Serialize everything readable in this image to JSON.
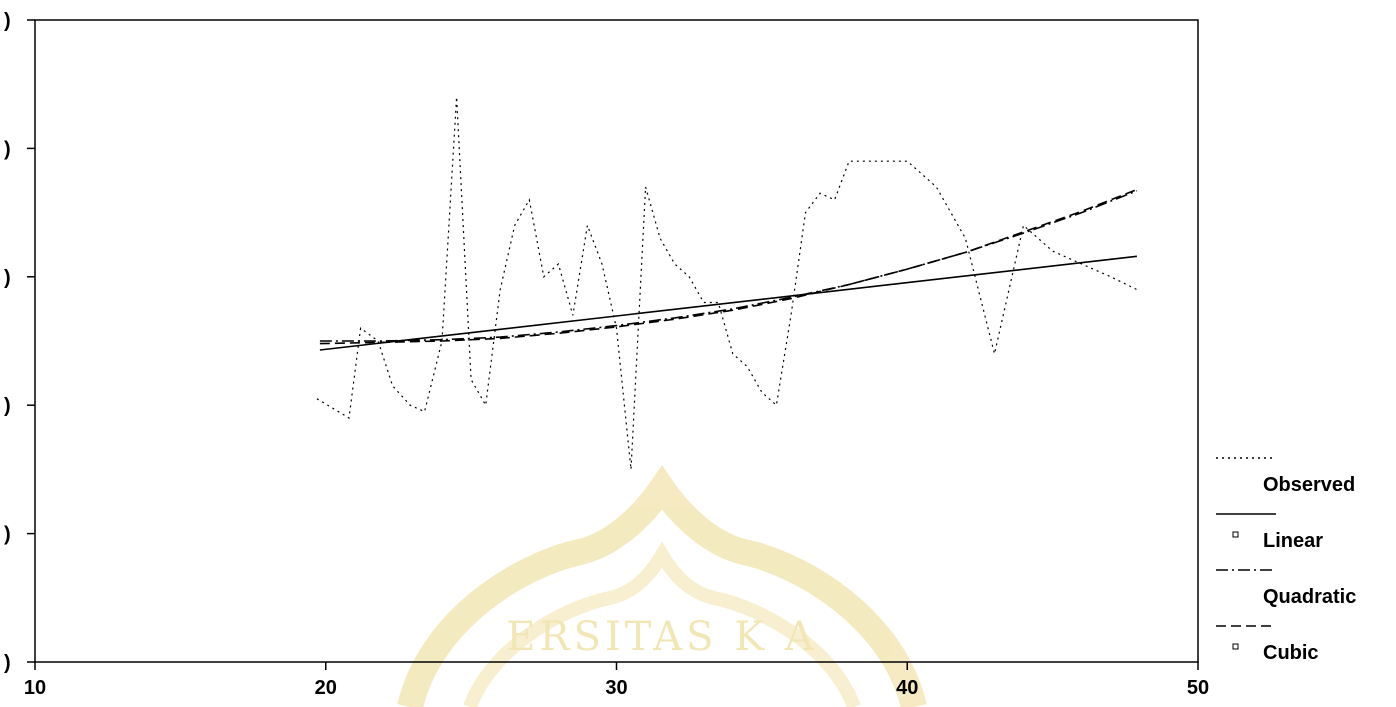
{
  "chart_data": {
    "type": "line",
    "title": "",
    "xlabel": "",
    "ylabel": "",
    "xlim": [
      10,
      50
    ],
    "x_ticks": [
      "10",
      "20",
      "30",
      "40",
      "50"
    ],
    "y_ticks": [
      ")",
      ")",
      ")",
      ")",
      ")",
      ")"
    ],
    "grid": false,
    "legend_position": "right-bottom",
    "legend": [
      {
        "name": "Observed",
        "style": "dotted"
      },
      {
        "name": "Linear",
        "style": "solid"
      },
      {
        "name": "Quadratic",
        "style": "dashdot"
      },
      {
        "name": "Cubic",
        "style": "dashed"
      }
    ],
    "series": [
      {
        "name": "Observed",
        "style": "dotted",
        "x": [
          19.7,
          20.8,
          21.2,
          21.8,
          22.3,
          22.9,
          23.4,
          24.0,
          24.5,
          25.0,
          25.5,
          26.0,
          26.5,
          27.0,
          27.5,
          28.0,
          28.5,
          29.0,
          29.5,
          30.0,
          30.5,
          31.0,
          31.5,
          32.0,
          32.5,
          33.0,
          33.5,
          34.0,
          34.5,
          35.0,
          35.5,
          36.0,
          36.5,
          37.0,
          37.5,
          38.0,
          39.0,
          40.0,
          41.0,
          42.0,
          43.0,
          44.0,
          45.0,
          46.0,
          47.0,
          47.9
        ],
        "y": [
          20.5,
          19.0,
          26.0,
          25.0,
          21.5,
          20.0,
          19.5,
          25.0,
          44.0,
          22.0,
          20.0,
          29.0,
          34.0,
          36.0,
          30.0,
          31.0,
          27.0,
          34.0,
          31.0,
          26.0,
          15.0,
          37.0,
          33.0,
          31.0,
          30.0,
          28.0,
          28.0,
          24.0,
          23.0,
          21.0,
          20.0,
          27.0,
          35.0,
          36.5,
          36.0,
          39.0,
          39.0,
          39.0,
          37.0,
          33.0,
          24.0,
          34.0,
          32.0,
          31.0,
          30.0,
          29.0
        ]
      },
      {
        "name": "Linear",
        "style": "solid",
        "x": [
          19.8,
          47.9
        ],
        "y": [
          24.3,
          31.6
        ]
      },
      {
        "name": "Quadratic",
        "style": "dashdot",
        "x": [
          19.8,
          22.0,
          24.0,
          26.0,
          28.0,
          30.0,
          32.0,
          34.0,
          36.0,
          38.0,
          40.0,
          42.0,
          44.0,
          46.0,
          47.9
        ],
        "y": [
          25.0,
          25.0,
          25.1,
          25.3,
          25.7,
          26.2,
          26.8,
          27.5,
          28.4,
          29.4,
          30.6,
          31.9,
          33.4,
          35.0,
          36.7
        ]
      },
      {
        "name": "Cubic",
        "style": "dashed",
        "x": [
          19.8,
          22.0,
          24.0,
          26.0,
          28.0,
          30.0,
          32.0,
          34.0,
          36.0,
          38.0,
          40.0,
          42.0,
          44.0,
          46.0,
          47.9
        ],
        "y": [
          24.8,
          24.9,
          25.0,
          25.2,
          25.6,
          26.1,
          26.7,
          27.4,
          28.3,
          29.4,
          30.6,
          31.9,
          33.5,
          35.1,
          36.8
        ]
      }
    ]
  },
  "watermark": {
    "text": "ERSITAS  K  A",
    "color": "#e8d27a"
  }
}
